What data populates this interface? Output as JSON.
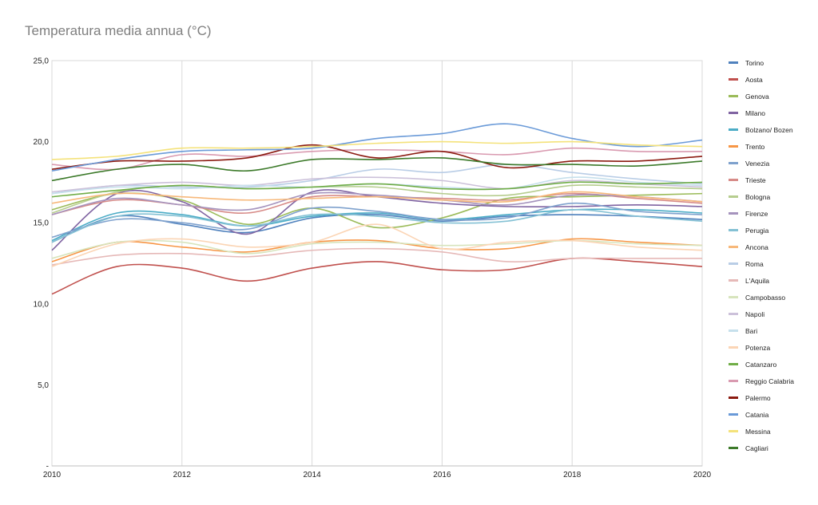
{
  "chart_data": {
    "type": "line",
    "title": "Temperatura media annua (°C)",
    "xlabel": "",
    "ylabel": "",
    "x": [
      2010,
      2011,
      2012,
      2013,
      2014,
      2015,
      2016,
      2017,
      2018,
      2019,
      2020
    ],
    "xlim": [
      2010,
      2020
    ],
    "x_ticks": [
      "2010",
      "2012",
      "2014",
      "2016",
      "2018",
      "2020"
    ],
    "ylim": [
      0,
      25
    ],
    "y_ticks": [
      {
        "value": 0,
        "label": "-"
      },
      {
        "value": 5,
        "label": "5,0"
      },
      {
        "value": 10,
        "label": "10,0"
      },
      {
        "value": 15,
        "label": "15,0"
      },
      {
        "value": 20,
        "label": "20,0"
      },
      {
        "value": 25,
        "label": "25,0"
      }
    ],
    "grid": "vertical",
    "legend": "right",
    "smooth": true,
    "series": [
      {
        "name": "Torino",
        "color": "#4f81bd",
        "values": [
          13.8,
          15.4,
          14.9,
          14.4,
          15.3,
          15.5,
          15.1,
          15.4,
          15.5,
          15.4,
          15.2
        ]
      },
      {
        "name": "Aosta",
        "color": "#c0504d",
        "values": [
          10.6,
          12.3,
          12.2,
          11.4,
          12.2,
          12.6,
          12.1,
          12.1,
          12.8,
          12.6,
          12.3
        ]
      },
      {
        "name": "Genova",
        "color": "#9bbb59",
        "values": [
          15.8,
          16.8,
          16.4,
          14.9,
          15.9,
          14.7,
          15.3,
          16.5,
          16.6,
          16.7,
          16.8
        ]
      },
      {
        "name": "Milano",
        "color": "#8064a2",
        "values": [
          13.3,
          16.8,
          16.3,
          14.3,
          16.9,
          16.6,
          16.2,
          16.0,
          16.0,
          16.1,
          16.0
        ]
      },
      {
        "name": "Bolzano/ Bozen",
        "color": "#4bacc6",
        "values": [
          13.9,
          15.6,
          15.5,
          14.8,
          15.4,
          15.6,
          15.2,
          15.5,
          15.8,
          15.8,
          15.6
        ]
      },
      {
        "name": "Trento",
        "color": "#f79646",
        "values": [
          12.6,
          13.8,
          13.5,
          13.2,
          13.8,
          13.9,
          13.4,
          13.4,
          14.0,
          13.8,
          13.6
        ]
      },
      {
        "name": "Venezia",
        "color": "#7ea1cd",
        "values": [
          14.1,
          15.2,
          15.0,
          14.6,
          15.9,
          15.7,
          15.2,
          15.3,
          16.2,
          15.7,
          15.5
        ]
      },
      {
        "name": "Trieste",
        "color": "#d78b88",
        "values": [
          15.5,
          16.4,
          16.1,
          15.6,
          16.6,
          16.6,
          16.5,
          16.4,
          16.8,
          16.5,
          16.2
        ]
      },
      {
        "name": "Bologna",
        "color": "#b6cd8e",
        "values": [
          15.6,
          16.9,
          17.3,
          17.1,
          17.2,
          17.2,
          16.8,
          16.7,
          17.3,
          17.2,
          17.1
        ]
      },
      {
        "name": "Firenze",
        "color": "#a593bd",
        "values": [
          15.5,
          16.5,
          16.1,
          15.8,
          16.8,
          16.7,
          16.4,
          16.1,
          16.7,
          16.6,
          16.3
        ]
      },
      {
        "name": "Perugia",
        "color": "#84c1d4",
        "values": [
          13.8,
          15.4,
          15.4,
          14.8,
          15.5,
          15.4,
          15.0,
          15.1,
          15.8,
          15.4,
          15.1
        ]
      },
      {
        "name": "Ancona",
        "color": "#f7b87a",
        "values": [
          16.2,
          16.8,
          16.6,
          16.4,
          16.5,
          16.6,
          16.4,
          16.3,
          16.9,
          16.6,
          16.3
        ]
      },
      {
        "name": "Roma",
        "color": "#b9cde6",
        "values": [
          16.8,
          17.3,
          17.2,
          17.2,
          17.6,
          18.3,
          18.1,
          18.6,
          18.1,
          17.7,
          17.4
        ]
      },
      {
        "name": "L'Aquila",
        "color": "#e6b9b8",
        "values": [
          12.4,
          13.0,
          13.1,
          12.9,
          13.3,
          13.4,
          13.2,
          12.6,
          12.8,
          12.8,
          12.8
        ]
      },
      {
        "name": "Campobasso",
        "color": "#d7e4bd",
        "values": [
          12.8,
          13.8,
          13.8,
          13.1,
          13.7,
          13.8,
          13.6,
          13.7,
          13.9,
          13.7,
          13.6
        ]
      },
      {
        "name": "Napoli",
        "color": "#ccc1da",
        "values": [
          16.9,
          17.3,
          17.5,
          17.3,
          17.7,
          17.8,
          17.6,
          17.1,
          17.6,
          17.4,
          17.2
        ]
      },
      {
        "name": "Bari",
        "color": "#c6e0ec",
        "values": [
          16.8,
          17.2,
          17.1,
          17.3,
          17.2,
          17.4,
          17.2,
          17.1,
          17.8,
          17.5,
          17.3
        ]
      },
      {
        "name": "Potenza",
        "color": "#fbd5b5",
        "values": [
          12.3,
          13.7,
          14.0,
          13.5,
          13.8,
          14.9,
          13.4,
          13.8,
          13.9,
          13.5,
          13.3
        ]
      },
      {
        "name": "Catanzaro",
        "color": "#70ad47",
        "values": [
          16.6,
          17.0,
          17.3,
          17.1,
          17.2,
          17.4,
          17.1,
          17.1,
          17.5,
          17.4,
          17.5
        ]
      },
      {
        "name": "Reggio Calabria",
        "color": "#d99ab0",
        "values": [
          18.6,
          18.3,
          19.2,
          19.1,
          19.4,
          19.5,
          19.4,
          19.2,
          19.6,
          19.4,
          19.4
        ]
      },
      {
        "name": "Palermo",
        "color": "#8b1a10",
        "values": [
          18.3,
          18.8,
          18.8,
          19.0,
          19.8,
          19.0,
          19.4,
          18.4,
          18.8,
          18.8,
          19.1
        ]
      },
      {
        "name": "Catania",
        "color": "#6a9ad8",
        "values": [
          18.2,
          18.9,
          19.4,
          19.5,
          19.6,
          20.2,
          20.5,
          21.1,
          20.2,
          19.7,
          20.1
        ]
      },
      {
        "name": "Messina",
        "color": "#f4e27a",
        "values": [
          18.9,
          19.1,
          19.6,
          19.6,
          19.7,
          19.9,
          20.0,
          19.9,
          20.0,
          19.8,
          19.7
        ]
      },
      {
        "name": "Cagliari",
        "color": "#3c7a2a",
        "values": [
          17.6,
          18.3,
          18.6,
          18.2,
          18.9,
          18.9,
          19.0,
          18.6,
          18.6,
          18.5,
          18.8
        ]
      }
    ]
  }
}
